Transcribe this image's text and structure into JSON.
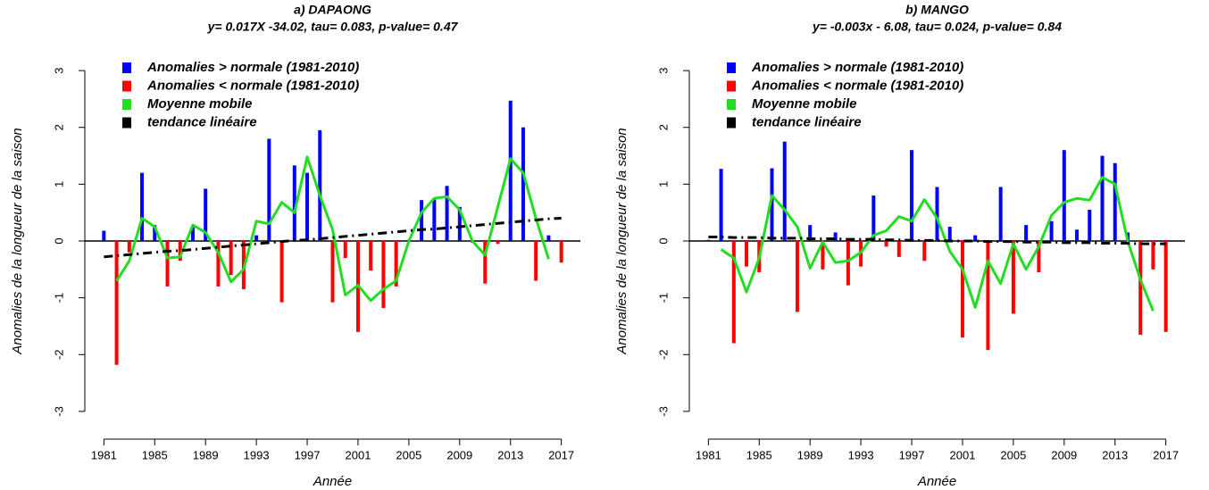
{
  "chart_data": [
    {
      "type": "bar",
      "title": "a) DAPAONG",
      "subtitle": "y= 0.017X -34.02, tau= 0.083, p-value= 0.47",
      "x_label": "Année",
      "y_label": "Anomalies de la longueur de la saison",
      "x": [
        1981,
        1982,
        1983,
        1984,
        1985,
        1986,
        1987,
        1988,
        1989,
        1990,
        1991,
        1992,
        1993,
        1994,
        1995,
        1996,
        1997,
        1998,
        1999,
        2000,
        2001,
        2002,
        2003,
        2004,
        2005,
        2006,
        2007,
        2008,
        2009,
        2010,
        2011,
        2012,
        2013,
        2014,
        2015,
        2016,
        2017
      ],
      "xlim": [
        1979.5,
        2018.5
      ],
      "xticks": [
        1981,
        1985,
        1989,
        1993,
        1997,
        2001,
        2005,
        2009,
        2013,
        2017
      ],
      "ylim": [
        -3.3,
        3.3
      ],
      "yticks": [
        -3,
        -2,
        -1,
        0,
        1,
        2,
        3
      ],
      "legend": "topleft",
      "series": [
        {
          "name": "Anomalies > normale (1981-2010)",
          "color": "#0000ff",
          "type": "bar",
          "values": [
            0.18,
            null,
            null,
            1.2,
            0.28,
            null,
            null,
            0.28,
            0.92,
            null,
            null,
            null,
            0.1,
            1.8,
            null,
            1.33,
            1.2,
            1.95,
            null,
            null,
            null,
            null,
            null,
            null,
            0.02,
            0.72,
            0.75,
            0.97,
            0.6,
            null,
            null,
            null,
            2.47,
            2.0,
            null,
            0.1,
            null
          ]
        },
        {
          "name": "Anomalies < normale (1981-2010)",
          "color": "#ff0000",
          "type": "bar",
          "values": [
            null,
            -2.18,
            -0.2,
            null,
            null,
            -0.8,
            -0.35,
            null,
            null,
            -0.8,
            -0.6,
            -0.85,
            null,
            null,
            -1.08,
            null,
            null,
            null,
            -1.08,
            -0.3,
            -1.6,
            -0.52,
            -1.18,
            -0.8,
            null,
            null,
            null,
            null,
            null,
            -0.03,
            -0.75,
            -0.05,
            null,
            null,
            -0.7,
            null,
            -0.38
          ]
        },
        {
          "name": "Moyenne mobile",
          "color": "#22dd22",
          "type": "line",
          "values": [
            null,
            -0.7,
            -0.35,
            0.4,
            0.25,
            -0.3,
            -0.28,
            0.28,
            0.15,
            -0.2,
            -0.72,
            -0.5,
            0.35,
            0.3,
            0.68,
            0.5,
            1.48,
            0.8,
            0.2,
            -0.95,
            -0.78,
            -1.05,
            -0.85,
            -0.7,
            0.0,
            0.5,
            0.75,
            0.78,
            0.55,
            0.0,
            -0.25,
            0.6,
            1.45,
            1.2,
            0.4,
            -0.32,
            null
          ]
        },
        {
          "name": "tendance linéaire",
          "color": "#000000",
          "type": "line",
          "linestyle": "dashdot",
          "values": [
            -0.28,
            -0.26,
            -0.24,
            -0.22,
            -0.2,
            -0.18,
            -0.17,
            -0.15,
            -0.13,
            -0.11,
            -0.09,
            -0.07,
            -0.05,
            -0.03,
            -0.01,
            0.01,
            0.02,
            0.04,
            0.06,
            0.08,
            0.1,
            0.12,
            0.14,
            0.16,
            0.18,
            0.2,
            0.21,
            0.23,
            0.25,
            0.27,
            0.29,
            0.31,
            0.33,
            0.35,
            0.37,
            0.39,
            0.4
          ]
        }
      ]
    },
    {
      "type": "bar",
      "title": "b) MANGO",
      "subtitle": "y= -0.003x - 6.08, tau= 0.024, p-value= 0.84",
      "x_label": "Année",
      "y_label": "Anomalies de la longueur de la saison",
      "x": [
        1981,
        1982,
        1983,
        1984,
        1985,
        1986,
        1987,
        1988,
        1989,
        1990,
        1991,
        1992,
        1993,
        1994,
        1995,
        1996,
        1997,
        1998,
        1999,
        2000,
        2001,
        2002,
        2003,
        2004,
        2005,
        2006,
        2007,
        2008,
        2009,
        2010,
        2011,
        2012,
        2013,
        2014,
        2015,
        2016,
        2017
      ],
      "xlim": [
        1979.5,
        2018.5
      ],
      "xticks": [
        1981,
        1985,
        1989,
        1993,
        1997,
        2001,
        2005,
        2009,
        2013,
        2017
      ],
      "ylim": [
        -3.3,
        3.3
      ],
      "yticks": [
        -3,
        -2,
        -1,
        0,
        1,
        2,
        3
      ],
      "legend": "topleft",
      "series": [
        {
          "name": "Anomalies > normale (1981-2010)",
          "color": "#0000ff",
          "type": "bar",
          "values": [
            0.02,
            1.27,
            null,
            null,
            null,
            1.28,
            1.75,
            null,
            0.28,
            null,
            0.15,
            null,
            null,
            0.8,
            null,
            null,
            1.6,
            null,
            0.95,
            0.25,
            null,
            0.1,
            null,
            0.95,
            null,
            0.28,
            null,
            0.35,
            1.6,
            0.2,
            0.55,
            1.5,
            1.37,
            0.15,
            null,
            null,
            null
          ]
        },
        {
          "name": "Anomalies < normale (1981-2010)",
          "color": "#ff0000",
          "type": "bar",
          "values": [
            null,
            null,
            -1.8,
            -0.45,
            -0.55,
            null,
            null,
            -1.25,
            null,
            -0.5,
            null,
            -0.78,
            -0.45,
            null,
            -0.1,
            -0.28,
            null,
            -0.35,
            null,
            null,
            -1.7,
            null,
            -1.92,
            null,
            -1.28,
            null,
            -0.55,
            null,
            null,
            null,
            null,
            null,
            null,
            null,
            -1.65,
            -0.5,
            -1.6
          ]
        },
        {
          "name": "Moyenne mobile",
          "color": "#22dd22",
          "type": "line",
          "values": [
            null,
            -0.15,
            -0.3,
            -0.9,
            -0.3,
            0.8,
            0.55,
            0.25,
            -0.48,
            -0.02,
            -0.38,
            -0.35,
            -0.2,
            0.1,
            0.18,
            0.43,
            0.35,
            0.73,
            0.4,
            -0.18,
            -0.5,
            -1.17,
            -0.35,
            -0.75,
            -0.05,
            -0.5,
            -0.1,
            0.45,
            0.68,
            0.75,
            0.72,
            1.12,
            1.0,
            0.0,
            -0.68,
            -1.23,
            null
          ]
        },
        {
          "name": "tendance linéaire",
          "color": "#000000",
          "type": "line",
          "linestyle": "dashdot",
          "values": [
            0.07,
            0.07,
            0.06,
            0.06,
            0.06,
            0.05,
            0.05,
            0.05,
            0.04,
            0.04,
            0.04,
            0.03,
            0.03,
            0.03,
            0.02,
            0.02,
            0.01,
            0.01,
            0.01,
            0.0,
            0.0,
            0.0,
            -0.01,
            -0.01,
            -0.01,
            -0.02,
            -0.02,
            -0.02,
            -0.03,
            -0.03,
            -0.03,
            -0.04,
            -0.04,
            -0.04,
            -0.05,
            -0.05,
            -0.05
          ]
        }
      ]
    }
  ]
}
